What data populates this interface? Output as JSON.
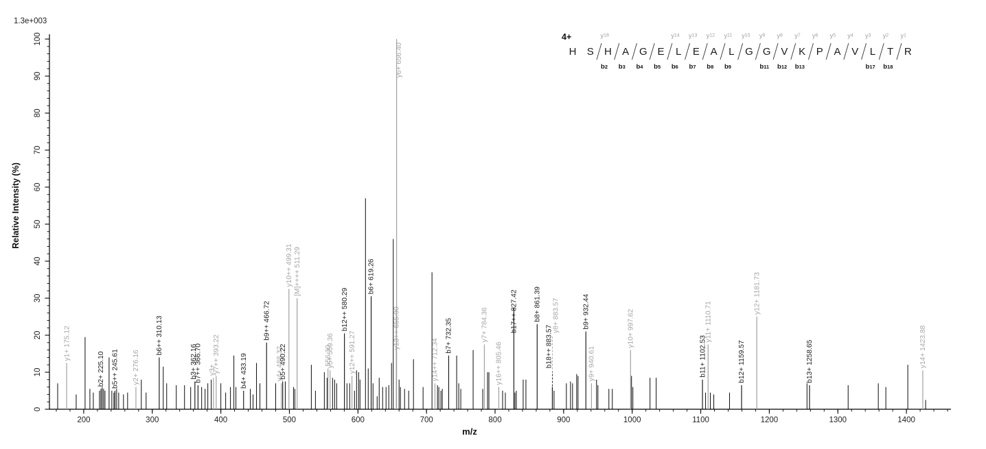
{
  "scale_label": "1.3e+003",
  "axis": {
    "x_title": "m/z",
    "y_title": "Relative  Intensity (%)",
    "x_range": [
      150,
      1465
    ],
    "y_range": [
      0,
      100
    ],
    "x_major_ticks": [
      200,
      300,
      400,
      500,
      600,
      700,
      800,
      900,
      1000,
      1100,
      1200,
      1300,
      1400
    ],
    "x_minor_step": 20,
    "y_major_ticks": [
      0,
      10,
      20,
      30,
      40,
      50,
      60,
      70,
      80,
      90,
      100
    ],
    "y_minor_step": 2,
    "grid": "off"
  },
  "peptide": {
    "charge_label": "4+",
    "sequence": "HSHAGELEALGGVKPAVLTR",
    "cleavages": [
      {
        "after_residue": 2,
        "y_label": "y18",
        "b_label": "b2"
      },
      {
        "after_residue": 3,
        "b_label": "b3"
      },
      {
        "after_residue": 4,
        "b_label": "b4"
      },
      {
        "after_residue": 5,
        "b_label": "b5"
      },
      {
        "after_residue": 6,
        "y_label": "y14",
        "b_label": "b6"
      },
      {
        "after_residue": 7,
        "y_label": "y13",
        "b_label": "b7"
      },
      {
        "after_residue": 8,
        "y_label": "y12",
        "b_label": "b8"
      },
      {
        "after_residue": 9,
        "y_label": "y11",
        "b_label": "b9"
      },
      {
        "after_residue": 10,
        "y_label": "y10"
      },
      {
        "after_residue": 11,
        "y_label": "y9",
        "b_label": "b11"
      },
      {
        "after_residue": 12,
        "y_label": "y8",
        "b_label": "b12"
      },
      {
        "after_residue": 13,
        "y_label": "y7",
        "b_label": "b13"
      },
      {
        "after_residue": 14,
        "y_label": "y6"
      },
      {
        "after_residue": 15,
        "y_label": "y5"
      },
      {
        "after_residue": 16,
        "y_label": "y4"
      },
      {
        "after_residue": 17,
        "y_label": "y3",
        "b_label": "b17"
      },
      {
        "after_residue": 18,
        "y_label": "y2",
        "b_label": "b18"
      },
      {
        "after_residue": 19,
        "y_label": "y1"
      }
    ]
  },
  "chart_data": {
    "type": "bar",
    "chart_kind": "MS/MS peptide fragmentation spectrum",
    "title": "",
    "xlabel": "m/z",
    "ylabel": "Relative Intensity (%)",
    "xlim": [
      150,
      1465
    ],
    "ylim": [
      0,
      100
    ],
    "intensity_scale_note": "1.3e+003",
    "legend": "none",
    "series": [
      {
        "name": "y-ions",
        "color": "#9c9c9c",
        "label_color": "#a6a6a6",
        "peaks": [
          {
            "mz": 175.12,
            "intensity": 12.5,
            "label": "y1+ 175.12"
          },
          {
            "mz": 276.16,
            "intensity": 6,
            "label": "y2+ 276.16"
          },
          {
            "mz": 389.3,
            "intensity": 8.5,
            "label": "y3+",
            "dx": -2
          },
          {
            "mz": 393.22,
            "intensity": 9,
            "label": "y7++ 393.22"
          },
          {
            "mz": 488.32,
            "intensity": 7,
            "label": "y4+ 488.32",
            "dx": -3
          },
          {
            "mz": 499.31,
            "intensity": 32.5,
            "label": "y10++ 499.31"
          },
          {
            "mz": 556.3,
            "intensity": 11,
            "label": "556.30"
          },
          {
            "mz": 559.36,
            "intensity": 10.5,
            "label": "y5+ 559.36"
          },
          {
            "mz": 591.27,
            "intensity": 9,
            "label": "y12++ 591.27"
          },
          {
            "mz": 655.9,
            "intensity": 27,
            "label": "y13++ 655.90",
            "label_at": 15.5
          },
          {
            "mz": 656.4,
            "intensity": 100,
            "label": "y6+ 656.40",
            "label_at": 89,
            "dx": 3
          },
          {
            "mz": 712.34,
            "intensity": 7,
            "label": "y14++ 712.34"
          },
          {
            "mz": 784.36,
            "intensity": 17.5,
            "label": "y7+ 784.36"
          },
          {
            "mz": 805.46,
            "intensity": 6,
            "label": "y16++ 805.46"
          },
          {
            "mz": 883.57,
            "intensity": 6,
            "label": "y8+ 883.57",
            "label_at": 20,
            "dx": 5,
            "leader": "dashed"
          },
          {
            "mz": 940.61,
            "intensity": 7,
            "label": "y9+ 940.61"
          },
          {
            "mz": 997.62,
            "intensity": 16,
            "label": "y10+ 997.62"
          },
          {
            "mz": 1110.71,
            "intensity": 17.5,
            "label": "y11+ 1110.71"
          },
          {
            "mz": 1181.73,
            "intensity": 25,
            "label": "y12+ 1181.73"
          },
          {
            "mz": 1423.88,
            "intensity": 10.5,
            "label": "y14+ 1423.88"
          }
        ]
      },
      {
        "name": "precursor",
        "color": "#9c9c9c",
        "label_color": "#a6a6a6",
        "peaks": [
          {
            "mz": 511.29,
            "intensity": 30,
            "label": "[M]++++ 511.29"
          }
        ]
      },
      {
        "name": "unassigned",
        "color": "#151515",
        "label_color": "#1c1c1c",
        "peaks": [
          [
            162,
            7
          ],
          [
            189,
            4
          ],
          [
            202,
            19.5
          ],
          [
            209,
            5.5
          ],
          [
            214,
            4.5
          ],
          [
            223,
            5
          ],
          [
            227,
            6
          ],
          [
            229,
            5.5
          ],
          [
            231,
            5
          ],
          [
            237,
            14
          ],
          [
            241,
            5
          ],
          [
            244,
            4.5
          ],
          [
            248,
            5.5
          ],
          [
            251,
            4.5
          ],
          [
            258,
            4
          ],
          [
            264,
            4.5
          ],
          [
            284,
            8
          ],
          [
            291,
            4.5
          ],
          [
            316,
            11.5
          ],
          [
            321,
            7
          ],
          [
            335,
            6.5
          ],
          [
            347,
            6.5
          ],
          [
            356,
            6
          ],
          [
            372,
            6
          ],
          [
            377,
            5.5
          ],
          [
            381,
            7
          ],
          [
            386,
            8
          ],
          [
            400,
            7
          ],
          [
            407,
            4.5
          ],
          [
            414,
            6
          ],
          [
            419,
            14.5
          ],
          [
            422,
            6
          ],
          [
            443,
            5.5
          ],
          [
            447,
            4
          ],
          [
            452,
            12.5
          ],
          [
            457,
            7
          ],
          [
            480,
            7
          ],
          [
            494,
            7.5
          ],
          [
            506,
            6
          ],
          [
            508,
            5.5
          ],
          [
            532,
            12
          ],
          [
            538,
            5
          ],
          [
            551,
            10
          ],
          [
            555,
            8.5
          ],
          [
            563,
            8.5
          ],
          [
            566,
            8
          ],
          [
            569,
            7
          ],
          [
            584,
            7
          ],
          [
            588,
            7
          ],
          [
            595,
            5
          ],
          [
            598,
            10.5
          ],
          [
            601,
            10
          ],
          [
            603,
            8
          ],
          [
            611,
            57
          ],
          [
            615,
            11
          ],
          [
            622,
            7
          ],
          [
            628,
            3.5
          ],
          [
            631,
            8.5
          ],
          [
            636,
            6
          ],
          [
            641,
            6
          ],
          [
            645,
            6.5
          ],
          [
            649,
            12.5
          ],
          [
            651.5,
            46
          ],
          [
            660,
            8
          ],
          [
            662,
            6
          ],
          [
            668,
            5.5
          ],
          [
            674,
            5
          ],
          [
            681,
            13.5
          ],
          [
            695,
            6
          ],
          [
            708,
            37
          ],
          [
            716,
            6.5
          ],
          [
            718,
            6
          ],
          [
            721,
            5
          ],
          [
            723,
            5.5
          ],
          [
            744,
            14.5
          ],
          [
            747,
            7
          ],
          [
            750,
            5.5
          ],
          [
            768,
            16
          ],
          [
            782,
            5.5
          ],
          [
            789,
            10
          ],
          [
            791,
            10
          ],
          [
            811,
            5
          ],
          [
            815,
            4.5
          ],
          [
            829,
            4.5
          ],
          [
            831,
            5
          ],
          [
            841,
            8
          ],
          [
            845,
            8
          ],
          [
            886,
            5
          ],
          [
            904,
            7
          ],
          [
            910,
            7.5
          ],
          [
            913,
            7
          ],
          [
            919,
            9.5
          ],
          [
            921,
            9
          ],
          [
            948,
            8
          ],
          [
            950,
            6.5
          ],
          [
            966,
            5.5
          ],
          [
            971,
            5.5
          ],
          [
            999,
            9
          ],
          [
            1001,
            6
          ],
          [
            1026,
            8.5
          ],
          [
            1035,
            8.5
          ],
          [
            1107,
            4.5
          ],
          [
            1114,
            4.5
          ],
          [
            1119,
            4
          ],
          [
            1142,
            4.5
          ],
          [
            1255,
            7
          ],
          [
            1315,
            6.5
          ],
          [
            1359,
            7
          ],
          [
            1370,
            6
          ],
          [
            1402,
            12
          ],
          [
            1428,
            2.5
          ]
        ]
      },
      {
        "name": "b-ions",
        "color": "#151515",
        "label_color": "#1c1c1c",
        "peaks": [
          {
            "mz": 225.1,
            "intensity": 5.5,
            "label": "b2+ 225.10"
          },
          {
            "mz": 245.61,
            "intensity": 5,
            "label": "b5++ 245.61"
          },
          {
            "mz": 310.13,
            "intensity": 14,
            "label": "b6++ 310.13"
          },
          {
            "mz": 362.16,
            "intensity": 7.5,
            "label": "b3+ 362.16",
            "dx": -2
          },
          {
            "mz": 366.7,
            "intensity": 6.5,
            "label": "b7++ 366.70"
          },
          {
            "mz": 433.19,
            "intensity": 5,
            "label": "b4+ 433.19"
          },
          {
            "mz": 466.72,
            "intensity": 18,
            "label": "b9++ 466.72"
          },
          {
            "mz": 490.22,
            "intensity": 7.5,
            "label": "b5+ 490.22"
          },
          {
            "mz": 580.29,
            "intensity": 20.5,
            "label": "b12++ 580.29"
          },
          {
            "mz": 619.26,
            "intensity": 30.5,
            "label": "b6+ 619.26"
          },
          {
            "mz": 732.35,
            "intensity": 14.5,
            "label": "b7+ 732.35"
          },
          {
            "mz": 827.42,
            "intensity": 27.5,
            "label": "b17++ 827.42",
            "label_at": 20
          },
          {
            "mz": 861.39,
            "intensity": 23,
            "label": "b8+ 861.39"
          },
          {
            "mz": 883.57,
            "intensity": 6,
            "label": "b18++ 883.57",
            "label_at": 10.5,
            "dx": -5,
            "leader": "dashed"
          },
          {
            "mz": 932.44,
            "intensity": 21,
            "label": "b9+ 932.44"
          },
          {
            "mz": 1102.53,
            "intensity": 8,
            "label": "b11+ 1102.53"
          },
          {
            "mz": 1159.57,
            "intensity": 6.5,
            "label": "b12+ 1159.57"
          },
          {
            "mz": 1258.65,
            "intensity": 6.5,
            "label": "b13+ 1258.65"
          }
        ]
      }
    ]
  }
}
